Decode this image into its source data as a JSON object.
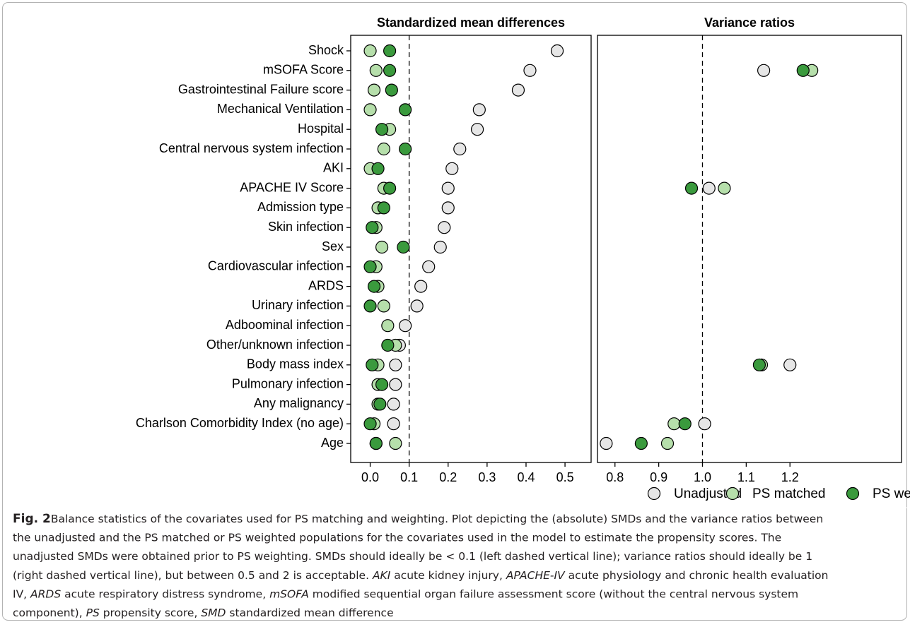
{
  "chart_data": [
    {
      "type": "dot",
      "title": "Standardized mean differences",
      "categories": [
        "Shock",
        "mSOFA Score",
        "Gastrointestinal Failure score",
        "Mechanical Ventilation",
        "Hospital",
        "Central nervous system infection",
        "AKI",
        "APACHE IV Score",
        "Admission type",
        "Skin infection",
        "Sex",
        "Cardiovascular infection",
        "ARDS",
        "Urinary infection",
        "Adboominal infection",
        "Other/unknown infection",
        "Body mass index",
        "Pulmonary infection",
        "Any malignancy",
        "Charlson Comorbidity Index (no age)",
        "Age"
      ],
      "series": [
        {
          "name": "Unadjusted",
          "color": "#e6e6e6",
          "values": [
            0.48,
            0.41,
            0.38,
            0.28,
            0.275,
            0.23,
            0.21,
            0.2,
            0.2,
            0.19,
            0.18,
            0.15,
            0.13,
            0.12,
            0.09,
            0.075,
            0.065,
            0.065,
            0.06,
            0.06,
            0.015
          ]
        },
        {
          "name": "PS matched",
          "color": "#b6dfab",
          "values": [
            0.0,
            0.015,
            0.01,
            0.0,
            0.05,
            0.035,
            0.0,
            0.035,
            0.02,
            0.015,
            0.03,
            0.015,
            0.02,
            0.035,
            0.045,
            0.065,
            0.02,
            0.02,
            0.02,
            0.01,
            0.065
          ]
        },
        {
          "name": "PS weighted",
          "color": "#3a9a3d",
          "values": [
            0.05,
            0.05,
            0.055,
            0.09,
            0.03,
            0.09,
            0.02,
            0.05,
            0.035,
            0.005,
            0.085,
            0.0,
            0.01,
            0.0,
            null,
            0.045,
            0.005,
            0.03,
            0.025,
            0.0,
            0.015
          ]
        }
      ],
      "xlim": [
        -0.05,
        0.567
      ],
      "xticks": [
        {
          "value": 0,
          "label": "0.0"
        },
        0.1,
        0.2,
        0.3,
        0.4,
        0.5
      ],
      "vline": 0.1
    },
    {
      "type": "dot",
      "title": "Variance ratios",
      "series": [
        {
          "color": "#e6e6e6",
          "values": [
            null,
            1.14,
            null,
            null,
            null,
            null,
            null,
            1.015,
            null,
            null,
            null,
            null,
            null,
            null,
            null,
            null,
            1.2,
            null,
            null,
            1.005,
            0.78
          ]
        },
        {
          "color": "#b6dfab",
          "values": [
            null,
            1.25,
            null,
            null,
            null,
            null,
            null,
            1.05,
            null,
            null,
            null,
            null,
            null,
            null,
            null,
            null,
            1.135,
            null,
            null,
            0.935,
            0.92
          ]
        },
        {
          "color": "#3a9a3d",
          "values": [
            null,
            1.23,
            null,
            null,
            null,
            null,
            null,
            0.975,
            null,
            null,
            null,
            null,
            null,
            null,
            null,
            null,
            1.13,
            null,
            null,
            0.96,
            0.86
          ]
        }
      ],
      "xlim": [
        0.76,
        1.455
      ],
      "xticks": [
        0.8,
        0.9,
        {
          "value": 1,
          "label": "1.0"
        },
        1.1,
        1.2
      ],
      "vline": 1
    }
  ],
  "caption": {
    "label": "Fig. 2",
    "lines": [
      [
        "Balance statistics of the covariates used for PS matching and weighting. Plot depicting the (absolute) SMDs and the variance ratios between"
      ],
      [
        "the unadjusted and the PS matched or PS weighted populations for the covariates used in the model to estimate the propensity scores. The"
      ],
      [
        "unadjusted SMDs were obtained prior to PS weighting. SMDs should ideally be < 0.1 (left dashed vertical line); variance ratios should ideally be 1"
      ],
      [
        "(right dashed vertical line), but between 0.5 and 2 is acceptable. ",
        {
          "text": "AKI",
          "italic": true
        },
        " acute kidney injury, ",
        {
          "text": "APACHE-IV",
          "italic": true
        },
        " acute physiology and chronic health evaluation"
      ],
      [
        "IV, ",
        {
          "text": "ARDS",
          "italic": true
        },
        " acute respiratory distress syndrome, ",
        {
          "text": "mSOFA",
          "italic": true
        },
        " modified sequential organ failure assessment score (without the central nervous system"
      ],
      [
        "component), ",
        {
          "text": "PS",
          "italic": true
        },
        " propensity score, ",
        {
          "text": "SMD",
          "italic": true
        },
        " standardized mean difference"
      ]
    ]
  }
}
